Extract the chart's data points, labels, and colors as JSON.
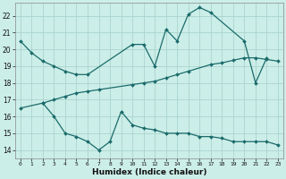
{
  "xlabel": "Humidex (Indice chaleur)",
  "bg_color": "#cceee8",
  "grid_color": "#aad4ce",
  "line_color": "#1a6b6b",
  "xlim": [
    -0.5,
    23.5
  ],
  "ylim": [
    13.5,
    22.8
  ],
  "yticks": [
    14,
    15,
    16,
    17,
    18,
    19,
    20,
    21,
    22
  ],
  "xticks": [
    0,
    1,
    2,
    3,
    4,
    5,
    6,
    7,
    8,
    9,
    10,
    11,
    12,
    13,
    14,
    15,
    16,
    17,
    18,
    19,
    20,
    21,
    22,
    23
  ],
  "line1_x": [
    0,
    1,
    2,
    3,
    4,
    5,
    6,
    10,
    11,
    12,
    13,
    14,
    15,
    16,
    17,
    20,
    21,
    22
  ],
  "line1_y": [
    20.5,
    19.8,
    19.3,
    19.0,
    18.7,
    18.5,
    18.5,
    20.3,
    20.3,
    19.0,
    21.2,
    20.5,
    22.1,
    22.5,
    22.2,
    20.5,
    18.0,
    19.5
  ],
  "line2_x": [
    2,
    3,
    4,
    5,
    6,
    7,
    8,
    9,
    10,
    11,
    12,
    13,
    14,
    15,
    16,
    17,
    18,
    19,
    20,
    21,
    22,
    23
  ],
  "line2_y": [
    16.8,
    16.0,
    15.0,
    14.8,
    14.5,
    14.0,
    14.5,
    16.3,
    15.5,
    15.3,
    15.2,
    15.0,
    15.0,
    15.0,
    14.8,
    14.8,
    14.7,
    14.5,
    14.5,
    14.5,
    14.5,
    14.3
  ],
  "line3_x": [
    0,
    2,
    3,
    4,
    5,
    6,
    7,
    10,
    11,
    12,
    13,
    14,
    15,
    17,
    18,
    19,
    20,
    21,
    22,
    23
  ],
  "line3_y": [
    16.5,
    16.8,
    17.0,
    17.2,
    17.4,
    17.5,
    17.6,
    17.9,
    18.0,
    18.1,
    18.3,
    18.5,
    18.7,
    19.1,
    19.2,
    19.35,
    19.5,
    19.5,
    19.4,
    19.3
  ]
}
